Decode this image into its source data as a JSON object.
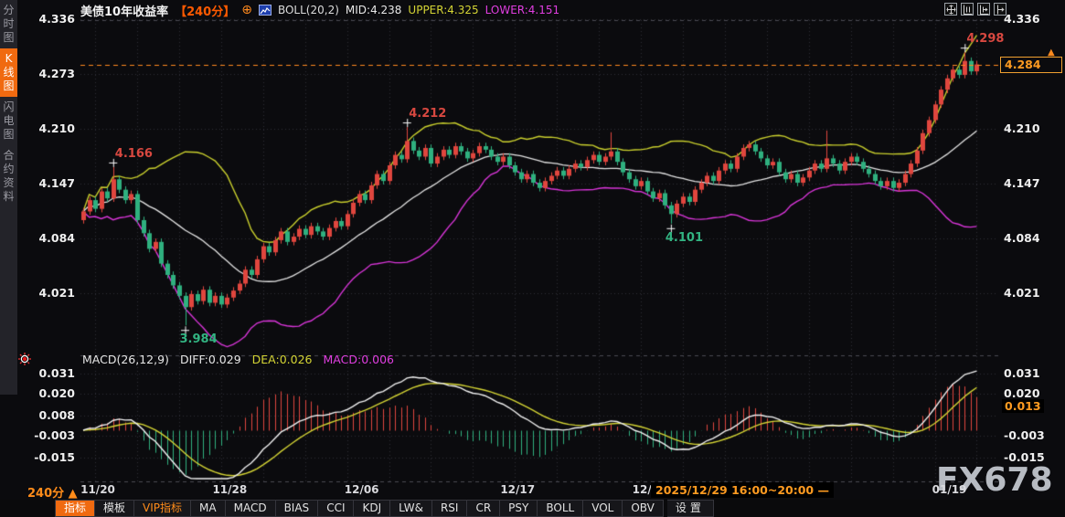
{
  "header": {
    "title": "美债10年收益率",
    "period_tag": "【240分】",
    "plus_icon": "⊕",
    "boll_label": "BOLL(20,2)",
    "mid": "MID:4.238",
    "upper": "UPPER:4.325",
    "lower": "LOWER:4.151"
  },
  "sidebar": {
    "items": [
      {
        "key": "time-chart",
        "label": "分时图",
        "active": false
      },
      {
        "key": "kline-chart",
        "label": "K线图",
        "active": true
      },
      {
        "key": "flash-chart",
        "label": "闪电图",
        "active": false
      },
      {
        "key": "contract-info",
        "label": "合约资料",
        "active": false
      }
    ]
  },
  "macd_header": {
    "name": "MACD(26,12,9)",
    "diff": "DIFF:0.029",
    "dea": "DEA:0.026",
    "macd": "MACD:0.006"
  },
  "footer": {
    "period": "240分 ▲",
    "time_tooltip": "2025/12/29 16:00~20:00 —",
    "watermark": "FX678",
    "tabs": [
      {
        "key": "indicator",
        "label": "指标",
        "style": "active"
      },
      {
        "key": "template",
        "label": "模板",
        "style": ""
      },
      {
        "key": "vip-indicator",
        "label": "VIP指标",
        "style": "vip"
      },
      {
        "key": "ma",
        "label": "MA",
        "style": ""
      },
      {
        "key": "macd",
        "label": "MACD",
        "style": ""
      },
      {
        "key": "bias",
        "label": "BIAS",
        "style": ""
      },
      {
        "key": "cci",
        "label": "CCI",
        "style": ""
      },
      {
        "key": "kdj",
        "label": "KDJ",
        "style": ""
      },
      {
        "key": "lw",
        "label": "LW&",
        "style": ""
      },
      {
        "key": "rsi",
        "label": "RSI",
        "style": ""
      },
      {
        "key": "cr",
        "label": "CR",
        "style": ""
      },
      {
        "key": "psy",
        "label": "PSY",
        "style": ""
      },
      {
        "key": "boll",
        "label": "BOLL",
        "style": ""
      },
      {
        "key": "vol",
        "label": "VOL",
        "style": ""
      },
      {
        "key": "obv",
        "label": "OBV",
        "style": ""
      },
      {
        "key": "settings",
        "label": "设置",
        "style": "settings"
      }
    ]
  },
  "colors": {
    "up": "#e0463e",
    "down": "#2fb07f",
    "boll_upper": "#c9cf2d",
    "boll_mid": "#e4e4e4",
    "boll_lower": "#d935d9",
    "diff_line": "#f0f0f0",
    "dea_line": "#d4d434",
    "accent": "#ff8a1e",
    "grid": "#2d2d35",
    "panel_border": "#4a4a52"
  },
  "chart_data": {
    "type": "candlestick",
    "title": "美债10年收益率 240分 K线 + BOLL(20,2) + MACD(26,12,9)",
    "price_axis_levels": [
      4.336,
      4.273,
      4.21,
      4.147,
      4.084,
      4.021
    ],
    "current_price": "4.284",
    "macd_axis_levels_left": [
      "0.031",
      "0.020",
      "0.008",
      "-0.003",
      "-0.015"
    ],
    "macd_axis_levels_right": [
      "0.031",
      "0.020",
      "-0.003",
      "-0.015"
    ],
    "macd_axis_values": [
      0.031,
      0.02,
      0.008,
      -0.003,
      -0.015
    ],
    "macd_current": "0.013",
    "closes": [
      4.115,
      4.128,
      4.118,
      4.138,
      4.13,
      4.152,
      4.14,
      4.128,
      4.135,
      4.105,
      4.09,
      4.072,
      4.08,
      4.055,
      4.042,
      4.03,
      4.018,
      4.005,
      4.02,
      4.012,
      4.025,
      4.01,
      4.018,
      4.008,
      4.016,
      4.024,
      4.032,
      4.048,
      4.042,
      4.06,
      4.075,
      4.068,
      4.082,
      4.092,
      4.08,
      4.086,
      4.095,
      4.088,
      4.098,
      4.092,
      4.086,
      4.096,
      4.104,
      4.098,
      4.112,
      4.125,
      4.135,
      4.128,
      4.145,
      4.158,
      4.15,
      4.168,
      4.18,
      4.175,
      4.196,
      4.185,
      4.178,
      4.188,
      4.17,
      4.178,
      4.186,
      4.18,
      4.19,
      4.184,
      4.176,
      4.182,
      4.19,
      4.186,
      4.178,
      4.172,
      4.178,
      4.168,
      4.16,
      4.152,
      4.158,
      4.148,
      4.142,
      4.15,
      4.156,
      4.162,
      4.156,
      4.164,
      4.17,
      4.166,
      4.174,
      4.18,
      4.172,
      4.178,
      4.184,
      4.172,
      4.16,
      4.152,
      4.144,
      4.15,
      4.138,
      4.13,
      4.136,
      4.122,
      4.112,
      4.124,
      4.132,
      4.126,
      4.14,
      4.148,
      4.156,
      4.15,
      4.162,
      4.17,
      4.164,
      4.178,
      4.188,
      4.192,
      4.184,
      4.176,
      4.168,
      4.172,
      4.16,
      4.152,
      4.158,
      4.148,
      4.154,
      4.162,
      4.17,
      4.164,
      4.176,
      4.17,
      4.162,
      4.172,
      4.178,
      4.172,
      4.164,
      4.158,
      4.15,
      4.144,
      4.15,
      4.142,
      4.148,
      4.158,
      4.17,
      4.185,
      4.205,
      4.22,
      4.238,
      4.255,
      4.268,
      4.278,
      4.272,
      4.288,
      4.276,
      4.284
    ],
    "spikes": [
      {
        "i": 5,
        "high": 4.166
      },
      {
        "i": 17,
        "low": 3.984
      },
      {
        "i": 54,
        "high": 4.212
      },
      {
        "i": 88,
        "high": 4.206
      },
      {
        "i": 98,
        "low": 4.101
      },
      {
        "i": 124,
        "high": 4.208
      },
      {
        "i": 147,
        "high": 4.298
      }
    ],
    "annotations": [
      {
        "i": 5,
        "text": "4.166",
        "dir": "high"
      },
      {
        "i": 17,
        "text": "3.984",
        "dir": "low"
      },
      {
        "i": 54,
        "text": "4.212",
        "dir": "high"
      },
      {
        "i": 98,
        "text": "4.101",
        "dir": "low"
      },
      {
        "i": 147,
        "text": "4.298",
        "dir": "high"
      }
    ],
    "dates": [
      {
        "i": 2,
        "label": "11/20"
      },
      {
        "i": 24,
        "label": "11/28"
      },
      {
        "i": 46,
        "label": "12/06"
      },
      {
        "i": 72,
        "label": "12/17"
      },
      {
        "i": 94,
        "label": "12/26"
      },
      {
        "i": 144,
        "label": "01/19"
      }
    ],
    "boll": {
      "period": 20,
      "k": 2
    },
    "macd": {
      "fast": 12,
      "slow": 26,
      "signal": 9
    }
  }
}
